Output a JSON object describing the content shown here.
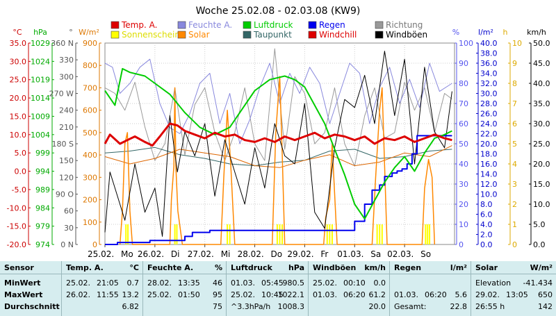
{
  "chart_data": {
    "type": "line",
    "title": "Woche 25.02.08 - 02.03.08 (KW9)",
    "x_start": "25.02.08 00:00",
    "x_days": [
      "25.02.",
      "26.02.",
      "27.02.",
      "28.02.",
      "29.02.",
      "01.03.",
      "02.03."
    ],
    "x_day_names": [
      "Mo",
      "Di",
      "Mi",
      "Do",
      "Fr",
      "Sa",
      "So"
    ],
    "axes": {
      "temp_c": {
        "unit": "°C",
        "color": "#cc0000",
        "min": -20,
        "max": 35,
        "ticks": [
          35.0,
          30.0,
          25.0,
          20.0,
          15.0,
          10.0,
          5.0,
          0.0,
          -5.0,
          -10.0,
          -15.0,
          -20.0
        ]
      },
      "pressure_hpa": {
        "unit": "hPa",
        "color": "#00aa00",
        "min": 974,
        "max": 1029,
        "ticks": [
          1029,
          1024,
          1019,
          1014,
          1009,
          1004,
          999,
          994,
          989,
          984,
          979,
          974
        ]
      },
      "direction_deg": {
        "unit": "°",
        "color": "#555555",
        "min": 0,
        "max": 360,
        "ticks": [
          "360 N",
          "330",
          "300",
          "270 W",
          "240",
          "210",
          "180 S",
          "150",
          "120",
          "90 O",
          "60",
          "30",
          "0 N"
        ]
      },
      "radiation_wm2": {
        "unit": "W/m²",
        "color": "#dd7700",
        "min": 0,
        "max": 900,
        "ticks": [
          900,
          800,
          700,
          600,
          500,
          400,
          300,
          200,
          100,
          0
        ]
      },
      "humidity_pct": {
        "unit": "%",
        "color": "#5555ee",
        "min": 0,
        "max": 100,
        "ticks": [
          100,
          90,
          80,
          70,
          60,
          50,
          40,
          30,
          20,
          10,
          0
        ]
      },
      "rain_lm2": {
        "unit": "l/m²",
        "color": "#0000cc",
        "min": 0,
        "max": 40,
        "ticks": [
          40.0,
          38.0,
          36.0,
          34.0,
          32.0,
          30.0,
          28.0,
          26.0,
          24.0,
          22.0,
          20.0,
          18.0,
          16.0,
          14.0,
          12.0,
          10.0,
          8.0,
          6.0,
          4.0,
          2.0,
          0.0
        ]
      },
      "sunshine_h": {
        "unit": "h",
        "color": "#ddaa00",
        "min": 0,
        "max": 10,
        "ticks": [
          10,
          9,
          8,
          7,
          6,
          5,
          4,
          3,
          2,
          1,
          0
        ]
      },
      "wind_kmh": {
        "unit": "km/h",
        "color": "#000000",
        "min": 0,
        "max": 50,
        "ticks": [
          50.0,
          45.0,
          40.0,
          35.0,
          30.0,
          25.0,
          20.0,
          15.0,
          10.0,
          5.0,
          0.0
        ]
      }
    },
    "legend": [
      {
        "name": "Temp. A.",
        "color": "#dd0000"
      },
      {
        "name": "Feuchte A.",
        "color": "#8888dd"
      },
      {
        "name": "Luftdruck",
        "color": "#00cc00"
      },
      {
        "name": "Regen",
        "color": "#0000ee"
      },
      {
        "name": "Richtung",
        "color": "#999999"
      },
      {
        "name": "Sonnenschein",
        "color": "#ffff00"
      },
      {
        "name": "Solar",
        "color": "#ff8800"
      },
      {
        "name": "Taupunkt",
        "color": "#336666"
      },
      {
        "name": "Windchill",
        "color": "#dd0000"
      },
      {
        "name": "Windböen",
        "color": "#000000"
      }
    ],
    "series": [
      {
        "name": "Temp. A.",
        "axis": "temp_c",
        "color": "#dd0000",
        "width": 3,
        "x": [
          0,
          0.1,
          0.3,
          0.45,
          0.6,
          0.8,
          0.95,
          1.1,
          1.3,
          1.45,
          1.6,
          1.8,
          2.0,
          2.2,
          2.4,
          2.6,
          2.8,
          3.0,
          3.2,
          3.4,
          3.6,
          3.8,
          4.0,
          4.2,
          4.4,
          4.6,
          4.8,
          5.0,
          5.2,
          5.4,
          5.6,
          5.8,
          6.0,
          6.2,
          6.4,
          6.6,
          6.8,
          6.95
        ],
        "y": [
          7.5,
          10.0,
          7.5,
          8.5,
          9.5,
          8.0,
          7.0,
          9.5,
          13.0,
          12.5,
          11.0,
          10.0,
          9.0,
          10.5,
          9.5,
          10.0,
          8.5,
          8.0,
          9.0,
          8.0,
          9.5,
          8.5,
          9.5,
          10.5,
          9.0,
          10.0,
          9.5,
          8.5,
          9.5,
          7.5,
          9.0,
          8.5,
          9.5,
          8.0,
          9.0,
          10.0,
          9.0,
          8.5
        ]
      },
      {
        "name": "Luftdruck",
        "axis": "pressure_hpa",
        "color": "#00cc00",
        "width": 2,
        "x": [
          0,
          0.2,
          0.35,
          0.5,
          0.8,
          1.0,
          1.3,
          1.6,
          1.9,
          2.2,
          2.5,
          2.8,
          3.0,
          3.3,
          3.6,
          3.8,
          4.0,
          4.2,
          4.4,
          4.6,
          4.8,
          5.0,
          5.2,
          5.4,
          5.6,
          5.8,
          6.0,
          6.2,
          6.4,
          6.6,
          6.8,
          6.95
        ],
        "y": [
          1016,
          1012,
          1022,
          1021,
          1020,
          1018,
          1015,
          1010,
          1006,
          1004,
          1006,
          1012,
          1016,
          1019,
          1020,
          1019,
          1017,
          1012,
          1007,
          1000,
          993,
          985,
          981,
          986,
          991,
          995,
          998,
          994,
          999,
          1003,
          1004,
          1005
        ]
      },
      {
        "name": "Feuchte A.",
        "axis": "humidity_pct",
        "color": "#8888dd",
        "width": 1,
        "x": [
          0,
          0.15,
          0.3,
          0.5,
          0.7,
          0.9,
          1.1,
          1.3,
          1.5,
          1.7,
          1.9,
          2.1,
          2.3,
          2.5,
          2.7,
          2.9,
          3.1,
          3.3,
          3.5,
          3.7,
          3.9,
          4.1,
          4.3,
          4.5,
          4.7,
          4.9,
          5.1,
          5.3,
          5.5,
          5.7,
          5.9,
          6.1,
          6.3,
          6.5,
          6.7,
          6.95
        ],
        "y": [
          90,
          88,
          75,
          80,
          88,
          92,
          70,
          58,
          55,
          65,
          80,
          85,
          60,
          75,
          50,
          62,
          78,
          90,
          70,
          85,
          75,
          88,
          80,
          60,
          75,
          90,
          85,
          60,
          78,
          88,
          70,
          82,
          68,
          90,
          76,
          80
        ]
      },
      {
        "name": "Richtung",
        "axis": "direction_deg",
        "color": "#999999",
        "width": 1,
        "x": [
          0,
          0.2,
          0.4,
          0.6,
          0.8,
          1.0,
          1.2,
          1.4,
          1.6,
          1.8,
          2.0,
          2.2,
          2.4,
          2.6,
          2.8,
          3.0,
          3.2,
          3.4,
          3.6,
          3.8,
          4.0,
          4.2,
          4.4,
          4.6,
          4.8,
          5.0,
          5.2,
          5.4,
          5.6,
          5.8,
          6.0,
          6.2,
          6.4,
          6.6,
          6.8,
          6.95
        ],
        "y": [
          280,
          270,
          240,
          290,
          210,
          150,
          180,
          280,
          160,
          250,
          280,
          200,
          150,
          200,
          280,
          180,
          150,
          350,
          170,
          300,
          270,
          180,
          200,
          280,
          180,
          140,
          230,
          280,
          190,
          200,
          290,
          240,
          280,
          200,
          270,
          260
        ]
      },
      {
        "name": "Taupunkt",
        "axis": "temp_c",
        "color": "#336666",
        "width": 1,
        "x": [
          0,
          0.5,
          1.0,
          1.5,
          2.0,
          2.5,
          3.0,
          3.5,
          4.0,
          4.5,
          5.0,
          5.5,
          6.0,
          6.5,
          6.95
        ],
        "y": [
          5.0,
          5.5,
          6.5,
          4.5,
          3.5,
          2.0,
          1.5,
          2.5,
          3.0,
          5.5,
          6.0,
          3.5,
          4.0,
          5.5,
          6.0
        ]
      },
      {
        "name": "Windchill",
        "axis": "temp_c",
        "color": "#dd6600",
        "width": 1,
        "x": [
          0,
          0.5,
          1.0,
          1.5,
          2.0,
          2.5,
          3.0,
          3.5,
          4.0,
          4.5,
          5.0,
          5.5,
          6.0,
          6.5,
          6.95
        ],
        "y": [
          4.0,
          2.0,
          3.5,
          6.0,
          5.0,
          4.0,
          1.5,
          1.0,
          3.0,
          4.5,
          1.5,
          2.5,
          5.0,
          4.0,
          7.0
        ]
      },
      {
        "name": "Windböen",
        "axis": "wind_kmh",
        "color": "#000000",
        "width": 1,
        "x": [
          0,
          0.1,
          0.25,
          0.4,
          0.6,
          0.8,
          1.0,
          1.15,
          1.3,
          1.45,
          1.6,
          1.8,
          2.0,
          2.2,
          2.4,
          2.6,
          2.8,
          3.0,
          3.2,
          3.4,
          3.6,
          3.8,
          4.0,
          4.2,
          4.4,
          4.6,
          4.8,
          5.0,
          5.2,
          5.4,
          5.6,
          5.8,
          6.0,
          6.2,
          6.4,
          6.6,
          6.8,
          6.95
        ],
        "y": [
          3,
          18,
          12,
          6,
          20,
          8,
          14,
          2,
          32,
          18,
          28,
          22,
          30,
          12,
          26,
          18,
          10,
          24,
          14,
          30,
          22,
          20,
          35,
          8,
          4,
          24,
          36,
          34,
          42,
          30,
          48,
          32,
          46,
          20,
          44,
          28,
          24,
          38
        ]
      },
      {
        "name": "Regen",
        "axis": "rain_lm2",
        "color": "#0000ee",
        "width": 2,
        "step": true,
        "x": [
          0,
          0.25,
          0.9,
          1.6,
          1.75,
          2.1,
          2.5,
          3.0,
          3.5,
          4.0,
          4.5,
          4.9,
          5.0,
          5.2,
          5.35,
          5.5,
          5.6,
          5.75,
          5.85,
          5.95,
          6.05,
          6.15,
          6.25,
          6.5,
          6.95
        ],
        "y": [
          0,
          0.4,
          0.8,
          1.6,
          2.4,
          2.8,
          2.8,
          2.8,
          2.8,
          2.8,
          2.8,
          2.8,
          4.6,
          8.0,
          10.8,
          11.8,
          13.5,
          14.2,
          14.6,
          15.0,
          16.0,
          18.0,
          21.6,
          21.6,
          21.6
        ]
      },
      {
        "name": "Solar",
        "axis": "radiation_wm2",
        "color": "#ff8800",
        "width": 1.5,
        "x": [
          0.3,
          0.35,
          0.4,
          0.45,
          0.5,
          0.55,
          1.3,
          1.33,
          1.38,
          1.4,
          1.42,
          1.46,
          1.55,
          2.32,
          2.38,
          2.45,
          2.52,
          2.6,
          3.35,
          3.42,
          3.5,
          3.55,
          3.6,
          4.38,
          4.42,
          4.5,
          4.55,
          4.65,
          5.35,
          5.42,
          5.5,
          5.55,
          5.6,
          5.65,
          6.35,
          6.4,
          6.48,
          6.55,
          6.6
        ],
        "y": [
          0,
          150,
          450,
          500,
          150,
          0,
          0,
          200,
          350,
          700,
          350,
          150,
          0,
          0,
          300,
          600,
          350,
          0,
          0,
          500,
          750,
          400,
          0,
          0,
          120,
          200,
          450,
          0,
          0,
          300,
          600,
          700,
          350,
          0,
          0,
          250,
          380,
          300,
          0
        ]
      },
      {
        "name": "Sonnenschein",
        "axis": "sunshine_h",
        "color": "#ffff00",
        "width": 1,
        "bars_x": [
          0.42,
          0.46,
          1.4,
          1.44,
          2.45,
          2.5,
          3.45,
          3.5,
          3.55,
          4.45,
          4.5,
          4.55,
          5.45,
          5.5,
          5.55,
          6.42,
          6.46,
          6.5
        ],
        "bars_y": [
          1.0,
          1.0,
          1.0,
          1.0,
          1.0,
          1.0,
          1.0,
          1.0,
          1.0,
          1.0,
          1.0,
          1.0,
          1.0,
          1.0,
          1.0,
          1.0,
          1.0,
          1.0
        ]
      }
    ],
    "grid": true,
    "legend_position": "top"
  },
  "summary": {
    "columns": [
      {
        "header": "Sensor",
        "unit": "",
        "rows": [
          "MinWert",
          "MaxWert",
          "Durchschnitt"
        ]
      },
      {
        "header": "Temp. A.",
        "unit": "°C",
        "rows": [
          [
            "25.02.",
            "21:05",
            "0.7"
          ],
          [
            "26.02.",
            "11:55",
            "13.2"
          ],
          [
            "",
            "",
            "6.82"
          ]
        ]
      },
      {
        "header": "Feuchte A.",
        "unit": "%",
        "rows": [
          [
            "28.02.",
            "13:35",
            "46"
          ],
          [
            "25.02.",
            "01:50",
            "95"
          ],
          [
            "",
            "",
            "75"
          ]
        ]
      },
      {
        "header": "Luftdruck",
        "unit": "hPa",
        "rows": [
          [
            "01.03.",
            "05:45",
            "980.5"
          ],
          [
            "25.02.",
            "10:45",
            "1022.1"
          ],
          [
            "^3.3hPa/h",
            "",
            "1008.3"
          ]
        ]
      },
      {
        "header": "Windböen",
        "unit": "km/h",
        "rows": [
          [
            "25.02.",
            "00:10",
            "0.0"
          ],
          [
            "01.03.",
            "06:20",
            "61.2"
          ],
          [
            "",
            "",
            "20.0"
          ]
        ]
      },
      {
        "header": "Regen",
        "unit": "l/m²",
        "rows": [
          [
            "",
            "",
            ""
          ],
          [
            "01.03.",
            "06:20",
            "5.6"
          ],
          [
            "Gesamt:",
            "",
            "22.8"
          ]
        ]
      },
      {
        "header": "Solar",
        "unit": "W/m²",
        "rows": [
          [
            "Elevation",
            "",
            "-41.434"
          ],
          [
            "29.02.",
            "13:05",
            "650"
          ],
          [
            "26:55 h",
            "",
            "142"
          ]
        ]
      }
    ]
  }
}
